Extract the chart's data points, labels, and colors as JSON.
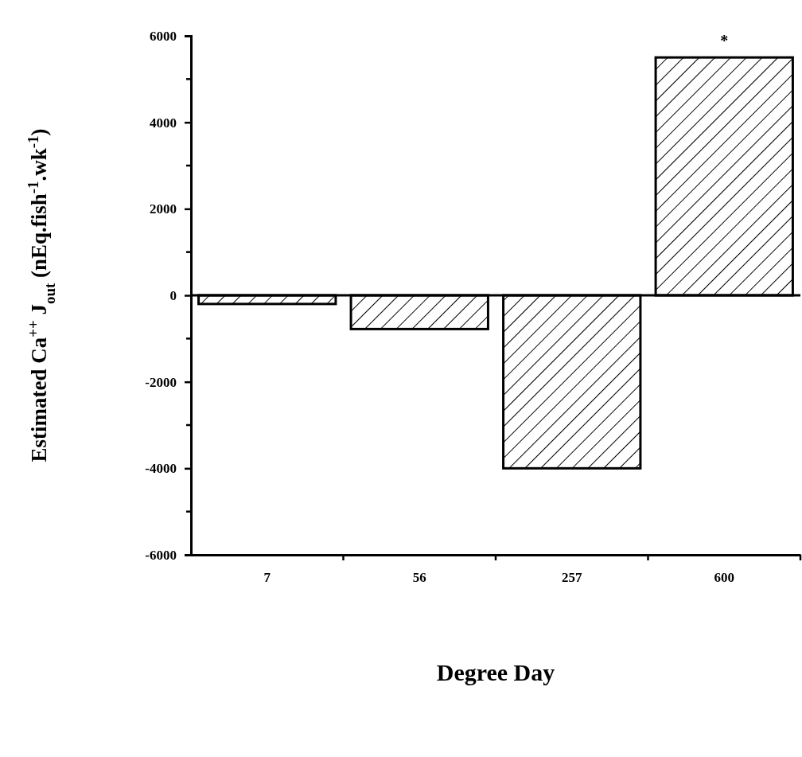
{
  "chart_data": {
    "type": "bar",
    "xlabel": "Degree Day",
    "ylabel": "Estimated Ca$^{++}$ J$_{out}$  (nEq.fish$^{-1}$.wk$^{-1}$)",
    "categories": [
      "7",
      "56",
      "257",
      "600"
    ],
    "values": [
      -200,
      -780,
      -4000,
      5500
    ],
    "color": "#000000",
    "ylim": [
      -6000,
      6000
    ],
    "yticks": [
      -6000,
      -4000,
      -2000,
      0,
      2000,
      4000,
      6000
    ],
    "ref_lines": [
      {
        "axis": "y",
        "value": 0
      }
    ],
    "annotations": [
      {
        "text": "*",
        "x": "600",
        "y": 5500
      }
    ]
  }
}
